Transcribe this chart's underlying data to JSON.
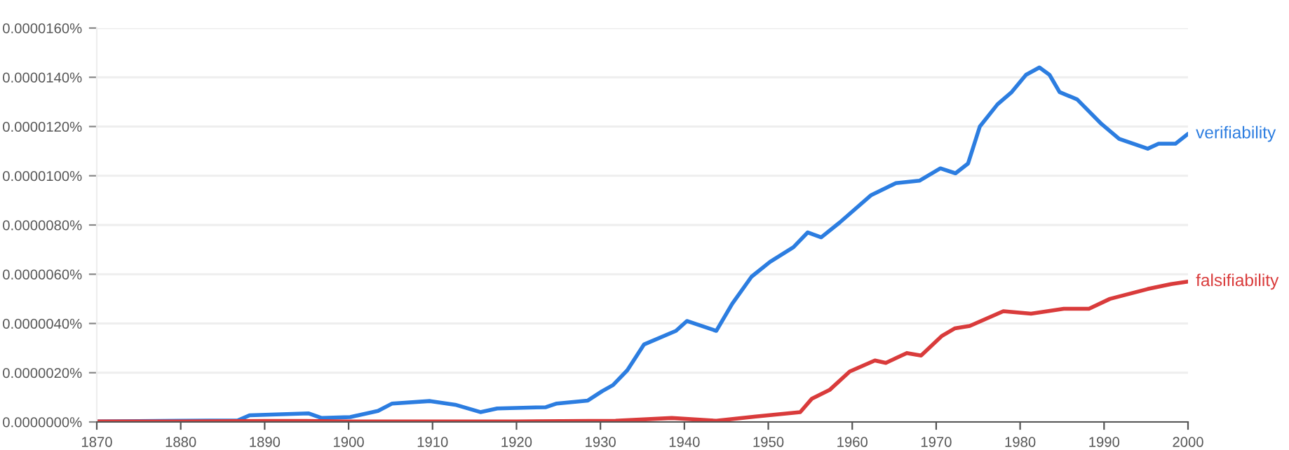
{
  "chart_data": {
    "type": "line",
    "x": [
      1870,
      1880,
      1886.8,
      1888.2,
      1895.2,
      1896.8,
      1900.2,
      1903.5,
      1905.2,
      1909.7,
      1912.7,
      1915.7,
      1917.7,
      1923.5,
      1924.8,
      1928.5,
      1930.2,
      1931.5,
      1933.2,
      1935.2,
      1939,
      1940.3,
      1943.8,
      1945.7,
      1948,
      1950.2,
      1953,
      1954.7,
      1956.3,
      1958.5,
      1962.2,
      1965.2,
      1968,
      1970.5,
      1972.3,
      1973.8,
      1975.2,
      1977.3,
      1979,
      1980.7,
      1982.3,
      1983.5,
      1984.7,
      1986.8,
      1989.7,
      1991.8,
      1995.2,
      1996.5,
      1998.5,
      2000
    ],
    "series": [
      {
        "name": "verifiability",
        "color": "#2c7de0",
        "values": [
          2e-08,
          5e-08,
          6e-08,
          2.7e-07,
          3.5e-07,
          1.6e-07,
          2e-07,
          4.5e-07,
          7.5e-07,
          8.5e-07,
          7e-07,
          4e-07,
          5.5e-07,
          6e-07,
          7.5e-07,
          8.7e-07,
          1.25e-06,
          1.5e-06,
          2.1e-06,
          3.15e-06,
          3.7e-06,
          4.1e-06,
          3.7e-06,
          4.8e-06,
          5.9e-06,
          6.5e-06,
          7.1e-06,
          7.7e-06,
          7.5e-06,
          8.1e-06,
          9.2e-06,
          9.7e-06,
          9.8e-06,
          1.03e-05,
          1.01e-05,
          1.05e-05,
          1.2e-05,
          1.29e-05,
          1.34e-05,
          1.41e-05,
          1.44e-05,
          1.41e-05,
          1.34e-05,
          1.31e-05,
          1.21e-05,
          1.15e-05,
          1.11e-05,
          1.13e-05,
          1.13e-05,
          1.17e-05
        ]
      },
      {
        "name": "falsifiability",
        "color": "#d93b3b",
        "x": [
          1870,
          1880,
          1890,
          1895,
          1900,
          1910,
          1920,
          1931.8,
          1938.5,
          1943.8,
          1948.5,
          1953.8,
          1955.2,
          1957.3,
          1959.7,
          1962.7,
          1964,
          1966.5,
          1968.2,
          1970.7,
          1972.2,
          1974,
          1978,
          1981.3,
          1985.2,
          1988.2,
          1990.7,
          1995.2,
          1998,
          2000
        ],
        "values": [
          2e-08,
          2e-08,
          4e-08,
          4e-08,
          2e-08,
          2e-08,
          2e-08,
          5e-08,
          1.6e-07,
          5e-08,
          2.2e-07,
          4e-07,
          9.5e-07,
          1.3e-06,
          2.05e-06,
          2.5e-06,
          2.4e-06,
          2.8e-06,
          2.7e-06,
          3.5e-06,
          3.8e-06,
          3.9e-06,
          4.5e-06,
          4.4e-06,
          4.6e-06,
          4.6e-06,
          5e-06,
          5.4e-06,
          5.6e-06,
          5.7e-06
        ]
      }
    ],
    "xlim": [
      1870,
      2000
    ],
    "xticks": [
      1870,
      1880,
      1890,
      1900,
      1910,
      1920,
      1930,
      1940,
      1950,
      1960,
      1970,
      1980,
      1990,
      2000
    ],
    "ylim": [
      0,
      1.6e-05
    ],
    "yticks": [
      {
        "value": 0,
        "label": "0.0000000%"
      },
      {
        "value": 2e-06,
        "label": "0.0000020%"
      },
      {
        "value": 4e-06,
        "label": "0.0000040%"
      },
      {
        "value": 6e-06,
        "label": "0.0000060%"
      },
      {
        "value": 8e-06,
        "label": "0.0000080%"
      },
      {
        "value": 1e-05,
        "label": "0.0000100%"
      },
      {
        "value": 1.2e-05,
        "label": "0.0000120%"
      },
      {
        "value": 1.4e-05,
        "label": "0.0000140%"
      },
      {
        "value": 1.6e-05,
        "label": "0.0000160%"
      }
    ],
    "grid": "y",
    "legend": false
  }
}
